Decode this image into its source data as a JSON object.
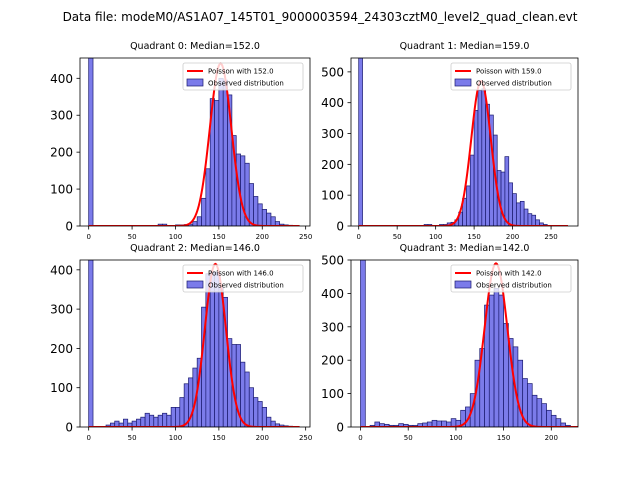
{
  "figure_title": "Data file: modeM0/AS1A07_145T01_9000003594_24303cztM0_level2_quad_clean.evt",
  "colors": {
    "bar_fill": "#7b7bea",
    "bar_edge": "#1a1a6e",
    "fit_line": "#ff0000"
  },
  "chart_data": [
    {
      "type": "bar",
      "title": "Quadrant 0: Median=152.0",
      "xlim": [
        -10,
        255
      ],
      "ylim": [
        0,
        455
      ],
      "xticks": [
        0,
        50,
        100,
        150,
        200,
        250
      ],
      "yticks": [
        0,
        100,
        200,
        300,
        400
      ],
      "bin_width": 5,
      "legend": [
        "Poisson with 152.0",
        "Observed distribution"
      ],
      "legend_position": "upper right",
      "bins": [
        [
          0,
          455
        ],
        [
          80,
          5
        ],
        [
          85,
          5
        ],
        [
          100,
          3
        ],
        [
          105,
          3
        ],
        [
          110,
          4
        ],
        [
          115,
          5
        ],
        [
          120,
          12
        ],
        [
          125,
          25
        ],
        [
          130,
          75
        ],
        [
          135,
          155
        ],
        [
          140,
          345
        ],
        [
          145,
          340
        ],
        [
          150,
          400
        ],
        [
          155,
          395
        ],
        [
          160,
          355
        ],
        [
          165,
          245
        ],
        [
          170,
          195
        ],
        [
          175,
          190
        ],
        [
          180,
          170
        ],
        [
          185,
          115
        ],
        [
          190,
          80
        ],
        [
          195,
          60
        ],
        [
          200,
          45
        ],
        [
          205,
          35
        ],
        [
          210,
          25
        ],
        [
          215,
          12
        ],
        [
          220,
          5
        ],
        [
          225,
          3
        ],
        [
          230,
          2
        ]
      ],
      "fit": {
        "mean": 152,
        "peak": 440,
        "x_range": [
          0,
          243
        ]
      }
    },
    {
      "type": "bar",
      "title": "Quadrant 1: Median=159.0",
      "xlim": [
        -10,
        285
      ],
      "ylim": [
        0,
        545
      ],
      "xticks": [
        0,
        50,
        100,
        150,
        200,
        250
      ],
      "yticks": [
        0,
        100,
        200,
        300,
        400,
        500
      ],
      "bin_width": 5,
      "legend": [
        "Poisson with 159.0",
        "Observed distribution"
      ],
      "legend_position": "upper right",
      "bins": [
        [
          0,
          545
        ],
        [
          85,
          5
        ],
        [
          90,
          5
        ],
        [
          105,
          5
        ],
        [
          110,
          5
        ],
        [
          115,
          10
        ],
        [
          120,
          12
        ],
        [
          125,
          20
        ],
        [
          130,
          45
        ],
        [
          135,
          90
        ],
        [
          140,
          130
        ],
        [
          145,
          230
        ],
        [
          150,
          375
        ],
        [
          155,
          440
        ],
        [
          160,
          445
        ],
        [
          165,
          395
        ],
        [
          170,
          360
        ],
        [
          175,
          295
        ],
        [
          180,
          180
        ],
        [
          185,
          175
        ],
        [
          190,
          225
        ],
        [
          195,
          140
        ],
        [
          200,
          105
        ],
        [
          205,
          75
        ],
        [
          210,
          80
        ],
        [
          215,
          55
        ],
        [
          220,
          40
        ],
        [
          225,
          35
        ],
        [
          230,
          20
        ],
        [
          235,
          10
        ],
        [
          240,
          5
        ]
      ],
      "fit": {
        "mean": 159,
        "peak": 470,
        "x_range": [
          0,
          272
        ]
      }
    },
    {
      "type": "bar",
      "title": "Quadrant 2: Median=146.0",
      "xlim": [
        -10,
        255
      ],
      "ylim": [
        0,
        425
      ],
      "xticks": [
        0,
        50,
        100,
        150,
        200,
        250
      ],
      "yticks": [
        0,
        100,
        200,
        300,
        400
      ],
      "bin_width": 5,
      "legend": [
        "Poisson with 146.0",
        "Observed distribution"
      ],
      "legend_position": "upper right",
      "bins": [
        [
          0,
          425
        ],
        [
          20,
          5
        ],
        [
          25,
          10
        ],
        [
          30,
          15
        ],
        [
          35,
          10
        ],
        [
          40,
          20
        ],
        [
          45,
          10
        ],
        [
          50,
          15
        ],
        [
          55,
          20
        ],
        [
          60,
          25
        ],
        [
          65,
          35
        ],
        [
          70,
          30
        ],
        [
          75,
          25
        ],
        [
          80,
          30
        ],
        [
          85,
          35
        ],
        [
          90,
          30
        ],
        [
          95,
          50
        ],
        [
          100,
          50
        ],
        [
          105,
          75
        ],
        [
          110,
          110
        ],
        [
          115,
          125
        ],
        [
          120,
          150
        ],
        [
          125,
          175
        ],
        [
          130,
          305
        ],
        [
          135,
          390
        ],
        [
          140,
          395
        ],
        [
          145,
          395
        ],
        [
          150,
          355
        ],
        [
          155,
          330
        ],
        [
          160,
          225
        ],
        [
          165,
          210
        ],
        [
          170,
          210
        ],
        [
          175,
          165
        ],
        [
          180,
          140
        ],
        [
          185,
          100
        ],
        [
          190,
          75
        ],
        [
          195,
          65
        ],
        [
          200,
          50
        ],
        [
          205,
          25
        ],
        [
          210,
          15
        ],
        [
          215,
          8
        ],
        [
          220,
          5
        ],
        [
          225,
          3
        ],
        [
          230,
          2
        ]
      ],
      "fit": {
        "mean": 146,
        "peak": 415,
        "x_range": [
          0,
          243
        ]
      }
    },
    {
      "type": "bar",
      "title": "Quadrant 3: Median=142.0",
      "xlim": [
        -10,
        228
      ],
      "ylim": [
        0,
        500
      ],
      "xticks": [
        0,
        50,
        100,
        150,
        200
      ],
      "yticks": [
        0,
        100,
        200,
        300,
        400,
        500
      ],
      "bin_width": 5,
      "legend": [
        "Poisson with 142.0",
        "Observed distribution"
      ],
      "legend_position": "upper right",
      "bins": [
        [
          0,
          500
        ],
        [
          10,
          5
        ],
        [
          15,
          15
        ],
        [
          20,
          10
        ],
        [
          25,
          8
        ],
        [
          30,
          5
        ],
        [
          35,
          5
        ],
        [
          40,
          10
        ],
        [
          45,
          8
        ],
        [
          50,
          5
        ],
        [
          55,
          5
        ],
        [
          60,
          10
        ],
        [
          65,
          12
        ],
        [
          70,
          15
        ],
        [
          75,
          20
        ],
        [
          80,
          18
        ],
        [
          85,
          18
        ],
        [
          90,
          15
        ],
        [
          95,
          25
        ],
        [
          100,
          20
        ],
        [
          105,
          50
        ],
        [
          110,
          60
        ],
        [
          115,
          100
        ],
        [
          120,
          200
        ],
        [
          125,
          235
        ],
        [
          130,
          365
        ],
        [
          135,
          395
        ],
        [
          140,
          415
        ],
        [
          145,
          395
        ],
        [
          150,
          310
        ],
        [
          155,
          265
        ],
        [
          160,
          240
        ],
        [
          165,
          200
        ],
        [
          170,
          145
        ],
        [
          175,
          130
        ],
        [
          180,
          95
        ],
        [
          185,
          85
        ],
        [
          190,
          70
        ],
        [
          195,
          50
        ],
        [
          200,
          35
        ],
        [
          205,
          25
        ],
        [
          210,
          12
        ],
        [
          215,
          5
        ]
      ],
      "fit": {
        "mean": 142,
        "peak": 490,
        "x_range": [
          0,
          228
        ]
      }
    }
  ]
}
